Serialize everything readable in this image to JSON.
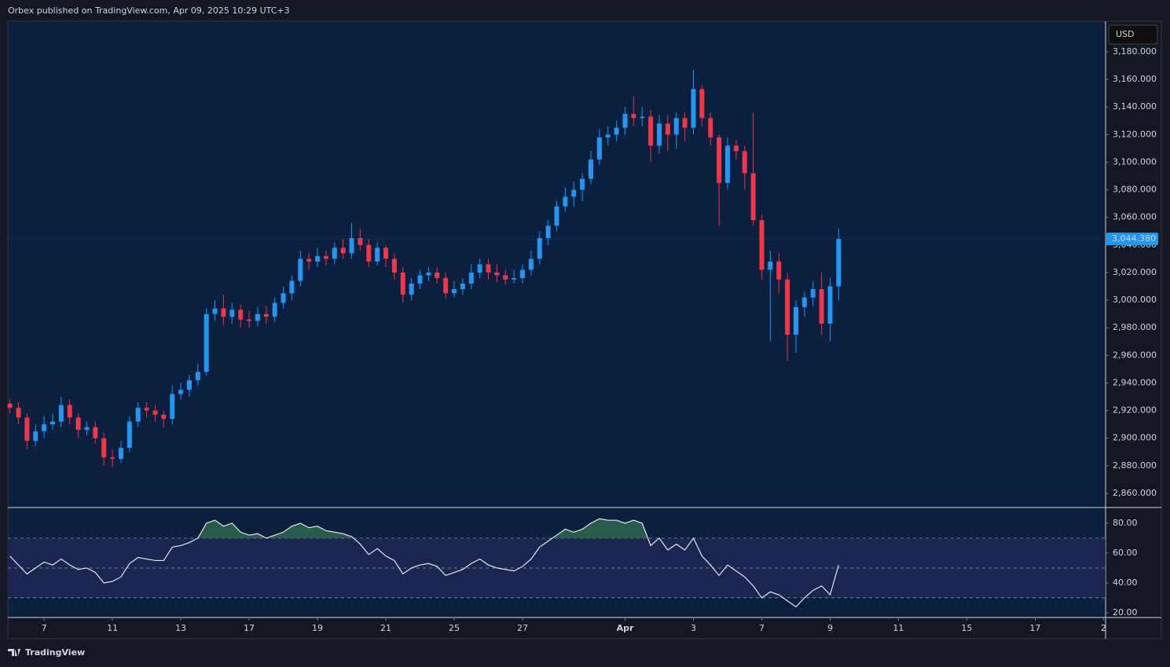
{
  "header": "Orbex published on TradingView.com, Apr 09, 2025 10:29 UTC+3",
  "footer": "TradingView",
  "chart_data": [
    {
      "type": "candlestick",
      "currency": "USD",
      "up_color": "#2196f3",
      "down_color": "#f23645",
      "x": [
        -1,
        -0.75,
        -0.5,
        -0.25,
        0,
        0.25,
        0.5,
        0.75,
        1,
        1.25,
        1.5,
        1.75,
        2,
        2.25,
        2.5,
        2.75,
        3,
        3.25,
        3.5,
        3.75,
        4,
        4.25,
        4.5,
        4.75,
        5,
        5.25,
        5.5,
        5.75,
        6,
        6.25,
        6.5,
        6.75,
        7,
        7.25,
        7.5,
        7.75,
        8,
        8.25,
        8.5,
        8.75,
        9,
        9.25,
        9.5,
        9.75,
        10,
        10.25,
        10.5,
        10.75,
        11,
        11.25,
        11.5,
        11.75,
        12,
        12.25,
        12.5,
        12.75,
        13,
        13.25,
        13.5,
        13.75,
        14,
        14.25,
        14.5,
        14.75,
        15,
        15.25,
        15.5,
        15.75,
        16,
        16.25,
        16.5,
        16.75,
        17,
        17.25,
        17.5,
        17.75,
        18,
        18.25,
        18.5,
        18.75,
        19,
        19.25,
        19.5,
        19.75,
        20,
        20.25,
        20.5,
        20.75,
        21,
        21.25,
        21.5,
        21.75,
        22,
        22.25,
        22.5,
        22.75,
        23,
        23.25
      ],
      "open": [
        2925,
        2922,
        2915,
        2898,
        2905,
        2910,
        2912,
        2924,
        2915,
        2906,
        2908,
        2900,
        2886,
        2885,
        2893,
        2912,
        2922,
        2920,
        2917,
        2914,
        2932,
        2935,
        2942,
        2948,
        2990,
        2994,
        2988,
        2993,
        2986,
        2985,
        2990,
        2988,
        2998,
        3005,
        3014,
        3030,
        3028,
        3032,
        3030,
        3038,
        3034,
        3045,
        3040,
        3028,
        3038,
        3030,
        3020,
        3004,
        3012,
        3018,
        3020,
        3016,
        3005,
        3008,
        3012,
        3020,
        3026,
        3020,
        3018,
        3015,
        3016,
        3022,
        3030,
        3045,
        3054,
        3068,
        3075,
        3080,
        3088,
        3102,
        3118,
        3120,
        3125,
        3135,
        3132,
        3133,
        3112,
        3128,
        3120,
        3132,
        3125,
        3153,
        3132,
        3118,
        3085,
        3112,
        3108,
        3092,
        3058,
        3022,
        3028,
        3015,
        2975,
        2995,
        3002,
        3008,
        2983,
        3010
      ],
      "high": [
        2928,
        2926,
        2918,
        2910,
        2916,
        2918,
        2930,
        2928,
        2918,
        2912,
        2912,
        2904,
        2892,
        2898,
        2916,
        2926,
        2926,
        2924,
        2920,
        2938,
        2940,
        2946,
        2954,
        2994,
        3000,
        3004,
        2998,
        2997,
        2992,
        2995,
        2996,
        3002,
        3010,
        3018,
        3036,
        3034,
        3038,
        3036,
        3042,
        3044,
        3056,
        3052,
        3044,
        3042,
        3040,
        3034,
        3024,
        3016,
        3022,
        3024,
        3024,
        3020,
        3014,
        3016,
        3026,
        3030,
        3030,
        3026,
        3022,
        3022,
        3026,
        3036,
        3050,
        3058,
        3072,
        3082,
        3086,
        3092,
        3108,
        3124,
        3126,
        3130,
        3140,
        3148,
        3140,
        3138,
        3134,
        3134,
        3136,
        3136,
        3167,
        3156,
        3136,
        3120,
        3118,
        3116,
        3112,
        3136,
        3062,
        3036,
        3034,
        3020,
        3000,
        3006,
        3014,
        3020,
        3016,
        3052
      ],
      "low": [
        2918,
        2910,
        2892,
        2894,
        2900,
        2906,
        2908,
        2910,
        2900,
        2902,
        2896,
        2880,
        2879,
        2882,
        2890,
        2908,
        2915,
        2912,
        2908,
        2910,
        2928,
        2930,
        2938,
        2945,
        2985,
        2982,
        2983,
        2980,
        2980,
        2981,
        2983,
        2984,
        2994,
        3000,
        3010,
        3022,
        3024,
        3025,
        3026,
        3030,
        3030,
        3036,
        3024,
        3025,
        3024,
        3015,
        2998,
        3000,
        3008,
        3014,
        3012,
        3001,
        3002,
        3004,
        3008,
        3016,
        3015,
        3013,
        3011,
        3012,
        3012,
        3018,
        3026,
        3040,
        3050,
        3064,
        3068,
        3072,
        3084,
        3098,
        3112,
        3115,
        3120,
        3126,
        3126,
        3100,
        3106,
        3108,
        3110,
        3115,
        3120,
        3126,
        3112,
        3054,
        3080,
        3102,
        3080,
        3054,
        3015,
        2970,
        3005,
        2956,
        2962,
        2988,
        2996,
        2975,
        2970,
        3000
      ],
      "close": [
        2922,
        2915,
        2898,
        2905,
        2910,
        2912,
        2924,
        2915,
        2906,
        2908,
        2900,
        2886,
        2885,
        2893,
        2912,
        2922,
        2920,
        2917,
        2914,
        2932,
        2935,
        2942,
        2948,
        2990,
        2994,
        2988,
        2993,
        2986,
        2985,
        2990,
        2988,
        2998,
        3005,
        3014,
        3030,
        3028,
        3032,
        3030,
        3038,
        3034,
        3045,
        3040,
        3028,
        3038,
        3030,
        3020,
        3004,
        3012,
        3018,
        3020,
        3016,
        3005,
        3008,
        3012,
        3020,
        3026,
        3020,
        3018,
        3015,
        3016,
        3022,
        3030,
        3045,
        3054,
        3068,
        3075,
        3080,
        3088,
        3102,
        3118,
        3120,
        3125,
        3135,
        3132,
        3133,
        3112,
        3128,
        3120,
        3132,
        3125,
        3153,
        3132,
        3118,
        3085,
        3112,
        3108,
        3092,
        3058,
        3022,
        3028,
        3015,
        2975,
        2995,
        3002,
        3008,
        2983,
        3010,
        3044.38
      ],
      "last_price": {
        "value": 3044.38,
        "label": "3,044.380"
      },
      "xlim": [
        -1.06,
        31.06
      ],
      "ylim": [
        2850.3,
        3202.2
      ],
      "yticks": [
        {
          "value": 2860,
          "label": "2,860.000"
        },
        {
          "value": 2880,
          "label": "2,880.000"
        },
        {
          "value": 2900,
          "label": "2,900.000"
        },
        {
          "value": 2920,
          "label": "2,920.000"
        },
        {
          "value": 2940,
          "label": "2,940.000"
        },
        {
          "value": 2960,
          "label": "2,960.000"
        },
        {
          "value": 2980,
          "label": "2,980.000"
        },
        {
          "value": 3000,
          "label": "3,000.000"
        },
        {
          "value": 3020,
          "label": "3,020.000"
        },
        {
          "value": 3040,
          "label": "3,040.000"
        },
        {
          "value": 3060,
          "label": "3,060.000"
        },
        {
          "value": 3080,
          "label": "3,080.000"
        },
        {
          "value": 3100,
          "label": "3,100.000"
        },
        {
          "value": 3120,
          "label": "3,120.000"
        },
        {
          "value": 3140,
          "label": "3,140.000"
        },
        {
          "value": 3160,
          "label": "3,160.000"
        },
        {
          "value": 3180,
          "label": "3,180.000"
        }
      ],
      "xticks": [
        {
          "value": 0,
          "label": "7"
        },
        {
          "value": 2,
          "label": "11"
        },
        {
          "value": 4,
          "label": "13"
        },
        {
          "value": 6,
          "label": "17"
        },
        {
          "value": 8,
          "label": "19"
        },
        {
          "value": 10,
          "label": "21"
        },
        {
          "value": 12,
          "label": "25"
        },
        {
          "value": 14,
          "label": "27"
        },
        {
          "value": 17,
          "label": "Apr"
        },
        {
          "value": 19,
          "label": "3"
        },
        {
          "value": 21,
          "label": "7"
        },
        {
          "value": 23,
          "label": "9"
        },
        {
          "value": 25,
          "label": "11"
        },
        {
          "value": 27,
          "label": "15"
        },
        {
          "value": 29,
          "label": "17"
        },
        {
          "value": 31,
          "label": "2"
        }
      ]
    },
    {
      "type": "line",
      "color": "#e8e8e8",
      "fill_color": "#2e6b4f",
      "x": [
        -1,
        -0.75,
        -0.5,
        -0.25,
        0,
        0.25,
        0.5,
        0.75,
        1,
        1.25,
        1.5,
        1.75,
        2,
        2.25,
        2.5,
        2.75,
        3,
        3.25,
        3.5,
        3.75,
        4,
        4.25,
        4.5,
        4.75,
        5,
        5.25,
        5.5,
        5.75,
        6,
        6.25,
        6.5,
        6.75,
        7,
        7.25,
        7.5,
        7.75,
        8,
        8.25,
        8.5,
        8.75,
        9,
        9.25,
        9.5,
        9.75,
        10,
        10.25,
        10.5,
        10.75,
        11,
        11.25,
        11.5,
        11.75,
        12,
        12.25,
        12.5,
        12.75,
        13,
        13.25,
        13.5,
        13.75,
        14,
        14.25,
        14.5,
        14.75,
        15,
        15.25,
        15.5,
        15.75,
        16,
        16.25,
        16.5,
        16.75,
        17,
        17.25,
        17.5,
        17.75,
        18,
        18.25,
        18.5,
        18.75,
        19,
        19.25,
        19.5,
        19.75,
        20,
        20.25,
        20.5,
        20.75,
        21,
        21.25,
        21.5,
        21.75,
        22,
        22.25,
        22.5,
        22.75,
        23,
        23.25
      ],
      "values": [
        58,
        52,
        46,
        50,
        54,
        52,
        56,
        52,
        49,
        50,
        47,
        40,
        41,
        44,
        53,
        57,
        56,
        55,
        55,
        64,
        65,
        67,
        70,
        80,
        82,
        78,
        80,
        74,
        72,
        73,
        70,
        72,
        74,
        78,
        80,
        77,
        78,
        75,
        74,
        73,
        71,
        66,
        59,
        63,
        58,
        55,
        46,
        50,
        52,
        53,
        51,
        45,
        47,
        49,
        53,
        56,
        52,
        50,
        49,
        48,
        51,
        56,
        64,
        68,
        72,
        76,
        74,
        76,
        80,
        83,
        82,
        82,
        80,
        82,
        80,
        65,
        70,
        62,
        66,
        62,
        70,
        58,
        52,
        45,
        52,
        48,
        44,
        38,
        30,
        34,
        32,
        28,
        24,
        30,
        35,
        38,
        32,
        52
      ],
      "levels": [
        30,
        50,
        70
      ],
      "xlim": [
        -1.06,
        31.06
      ],
      "ylim": [
        16.8,
        90
      ],
      "yticks": [
        {
          "value": 20,
          "label": "20.00"
        },
        {
          "value": 40,
          "label": "40.00"
        },
        {
          "value": 60,
          "label": "60.00"
        },
        {
          "value": 80,
          "label": "80.00"
        }
      ]
    }
  ]
}
